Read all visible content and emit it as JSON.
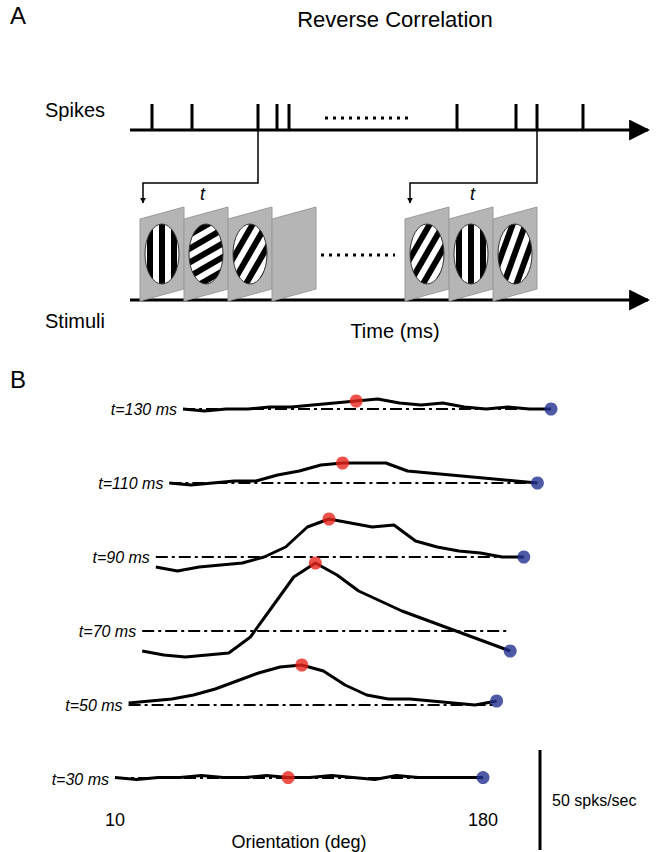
{
  "panel_labels": [
    "A",
    "B"
  ],
  "diagram": {
    "title": "Reverse Correlation",
    "rows": [
      "Spikes",
      "Stimuli"
    ],
    "time_label": "Time (ms)",
    "delay_label": "t",
    "stimuli_orientations": [
      90,
      30,
      60,
      null,
      60,
      90,
      70
    ]
  },
  "chart_data": {
    "type": "line",
    "x": [
      10,
      20,
      30,
      40,
      50,
      60,
      70,
      80,
      90,
      100,
      110,
      120,
      130,
      140,
      150,
      160,
      170,
      180
    ],
    "xlim": [
      10,
      180
    ],
    "xticks": [
      10,
      180
    ],
    "ylim": [
      -15,
      40
    ],
    "tick_labels": "x",
    "x_label": "Orientation (deg)",
    "baseline": 0,
    "color": "#000000",
    "markers": [
      {
        "x": 90,
        "color": "#e8251c"
      },
      {
        "x": 180,
        "color": "#22318f"
      }
    ],
    "scale_bar": {
      "value": 50,
      "label": "50 spks/sec"
    },
    "series": [
      {
        "name": "t=30 ms",
        "values": [
          0,
          -1,
          0,
          0,
          1,
          0,
          0,
          1,
          0,
          0,
          1,
          0,
          -1,
          1,
          0,
          0,
          0,
          0
        ]
      },
      {
        "name": "t=50 ms",
        "values": [
          1,
          2,
          3,
          5,
          8,
          12,
          16,
          19,
          20,
          17,
          10,
          5,
          3,
          3,
          2,
          1,
          0,
          2
        ]
      },
      {
        "name": "t=70 ms",
        "values": [
          -10,
          -12,
          -13,
          -12,
          -11,
          -3,
          12,
          27,
          34,
          28,
          20,
          15,
          10,
          6,
          2,
          -2,
          -6,
          -10
        ]
      },
      {
        "name": "t=90 ms",
        "values": [
          -5,
          -7,
          -5,
          -4,
          -3,
          0,
          5,
          15,
          19,
          17,
          15,
          16,
          8,
          5,
          3,
          2,
          0,
          0
        ]
      },
      {
        "name": "t=110 ms",
        "values": [
          0,
          -1,
          0,
          1,
          1,
          4,
          6,
          9,
          10,
          10,
          10,
          6,
          5,
          4,
          3,
          2,
          1,
          0
        ]
      },
      {
        "name": "t=130 ms",
        "values": [
          0,
          -1,
          0,
          0,
          1,
          1,
          2,
          3,
          4,
          5,
          3,
          2,
          3,
          1,
          0,
          1,
          0,
          0
        ]
      }
    ]
  }
}
